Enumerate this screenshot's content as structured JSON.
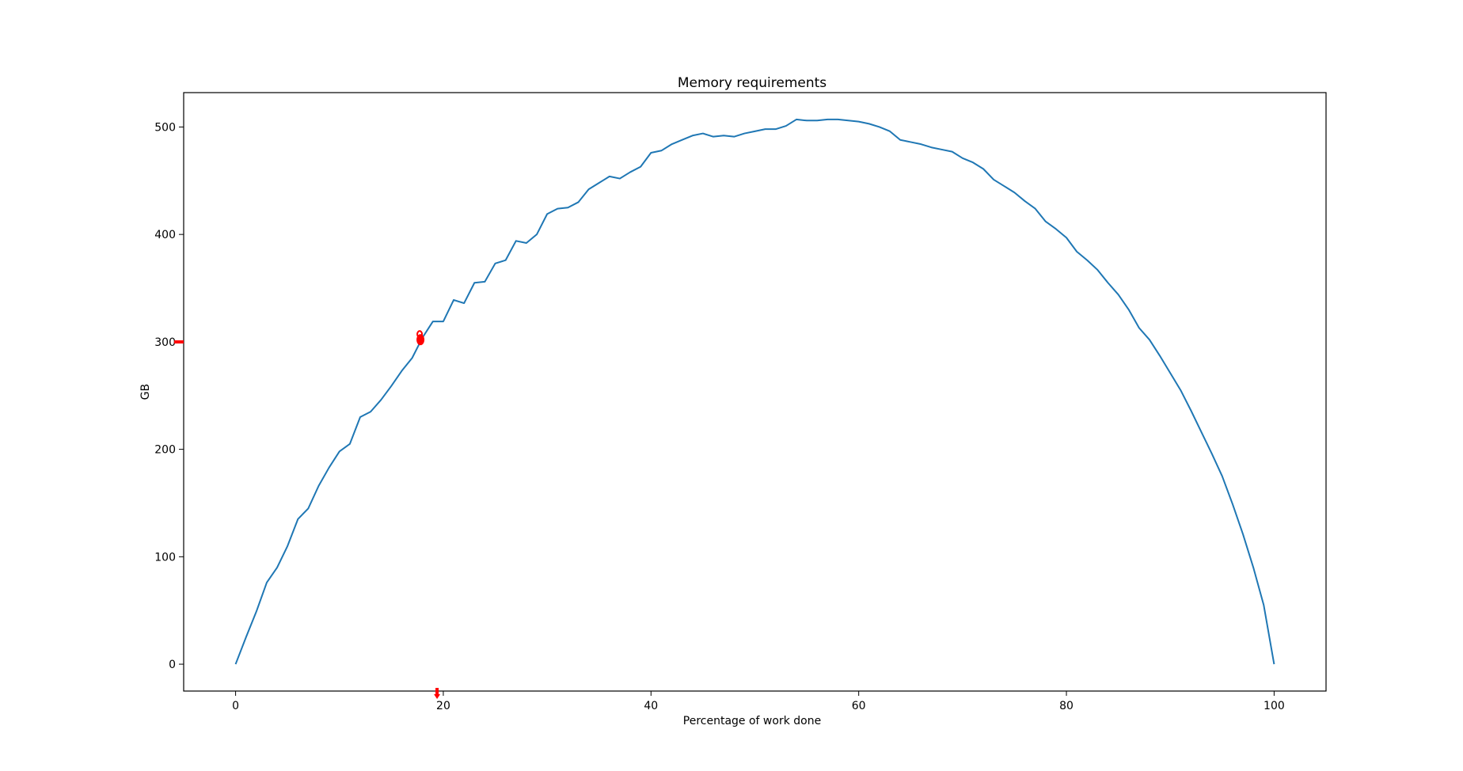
{
  "chart_data": {
    "type": "line",
    "title": "Memory requirements",
    "xlabel": "Percentage of work done",
    "ylabel": "GB",
    "xlim": [
      -5,
      105
    ],
    "ylim": [
      -25,
      532
    ],
    "xticks": [
      0,
      20,
      40,
      60,
      80,
      100
    ],
    "yticks": [
      0,
      100,
      200,
      300,
      400,
      500
    ],
    "grid": false,
    "series": [
      {
        "color": "#1f77b4",
        "x": [
          0,
          1,
          2,
          3,
          4,
          5,
          6,
          7,
          8,
          9,
          10,
          11,
          12,
          13,
          14,
          15,
          16,
          17,
          18,
          19,
          20,
          21,
          22,
          23,
          24,
          25,
          26,
          27,
          28,
          29,
          30,
          31,
          32,
          33,
          34,
          35,
          36,
          37,
          38,
          39,
          40,
          41,
          42,
          43,
          44,
          45,
          46,
          47,
          48,
          49,
          50,
          51,
          52,
          53,
          54,
          55,
          56,
          57,
          58,
          59,
          60,
          61,
          62,
          63,
          64,
          65,
          66,
          67,
          68,
          69,
          70,
          71,
          72,
          73,
          74,
          75,
          76,
          77,
          78,
          79,
          80,
          81,
          82,
          83,
          84,
          85,
          86,
          87,
          88,
          89,
          90,
          91,
          92,
          93,
          94,
          95,
          96,
          97,
          98,
          99,
          100
        ],
        "y": [
          0,
          25,
          49,
          76,
          90,
          110,
          135,
          145,
          166,
          183,
          198,
          205,
          230,
          235,
          246,
          259,
          273,
          285,
          304,
          319,
          319,
          339,
          336,
          355,
          356,
          373,
          376,
          394,
          392,
          400,
          419,
          424,
          425,
          430,
          442,
          448,
          454,
          452,
          458,
          463,
          476,
          478,
          484,
          488,
          492,
          494,
          491,
          492,
          491,
          494,
          496,
          498,
          498,
          501,
          507,
          506,
          506,
          507,
          507,
          506,
          505,
          503,
          500,
          496,
          488,
          486,
          484,
          481,
          479,
          477,
          471,
          467,
          461,
          451,
          445,
          439,
          431,
          424,
          412,
          405,
          397,
          384,
          376,
          367,
          355,
          344,
          330,
          313,
          302,
          287,
          271,
          255,
          236,
          216,
          196,
          175,
          149,
          121,
          90,
          55,
          0
        ]
      }
    ],
    "marker_color": "#ff0000"
  }
}
